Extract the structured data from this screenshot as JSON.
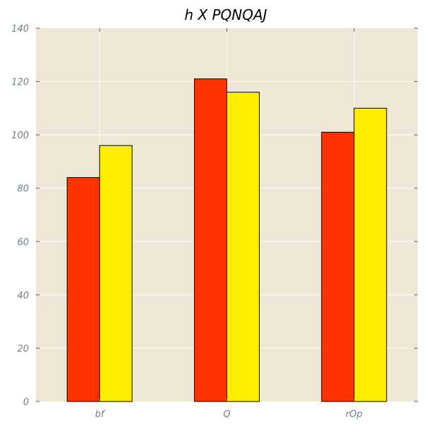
{
  "chart_data": {
    "type": "bar",
    "title": "h  X PQNQAJ",
    "xlabel": "",
    "ylabel": "",
    "categories": [
      "bf",
      "Q",
      "rOp"
    ],
    "series": [
      {
        "values": [
          84,
          121,
          101
        ],
        "color": "#ff3300"
      },
      {
        "values": [
          96,
          116,
          110
        ],
        "color": "#ffee00"
      }
    ],
    "ylim": [
      0,
      140
    ],
    "yticks": [
      0,
      20,
      40,
      60,
      80,
      100,
      120,
      140
    ],
    "grid": true,
    "legend": "none",
    "plot_background": "#efe7d6",
    "grid_color": "#ffffff",
    "tick_label_color": "#6e7f8c",
    "bar_edge_color": "#000000"
  }
}
